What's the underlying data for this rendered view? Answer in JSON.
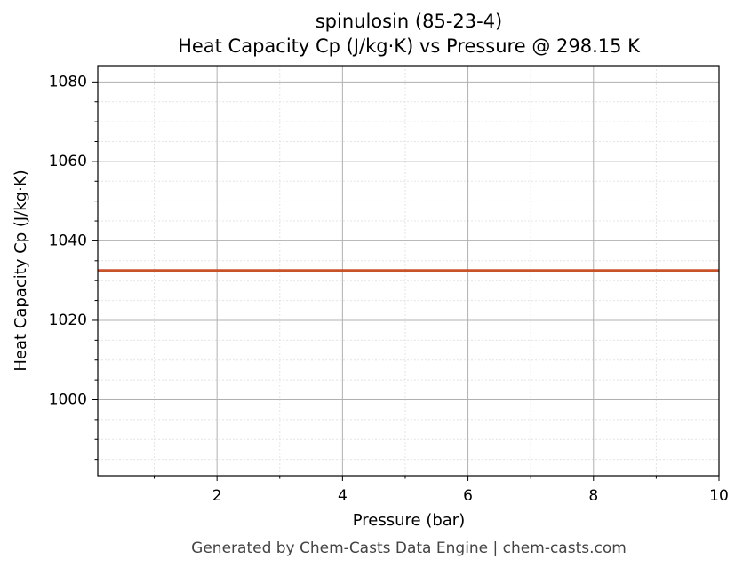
{
  "chart_data": {
    "type": "line",
    "title": "spinulosin (85-23-4)",
    "subtitle": "Heat Capacity Cp (J/kg·K) vs Pressure @ 298.15 K",
    "x_label": "Pressure (bar)",
    "y_label": "Heat Capacity Cp (J/kg·K)",
    "x": [
      0.1,
      10
    ],
    "series": [
      {
        "color": "#c8532a",
        "values": [
          1032.5,
          1032.5
        ]
      }
    ],
    "xlim": [
      0.1,
      10
    ],
    "xticks": [
      2,
      4,
      6,
      8,
      10
    ],
    "xminorticks": [
      1,
      3,
      5,
      7,
      9
    ],
    "ylim": [
      980.9,
      1084.1
    ],
    "yticks": [
      1000,
      1020,
      1040,
      1060,
      1080
    ],
    "yminorticks": [
      985,
      990,
      995,
      1005,
      1010,
      1015,
      1025,
      1030,
      1035,
      1045,
      1050,
      1055,
      1065,
      1070,
      1075
    ],
    "grid": true
  },
  "footer": "Generated by Chem-Casts Data Engine | chem-casts.com"
}
